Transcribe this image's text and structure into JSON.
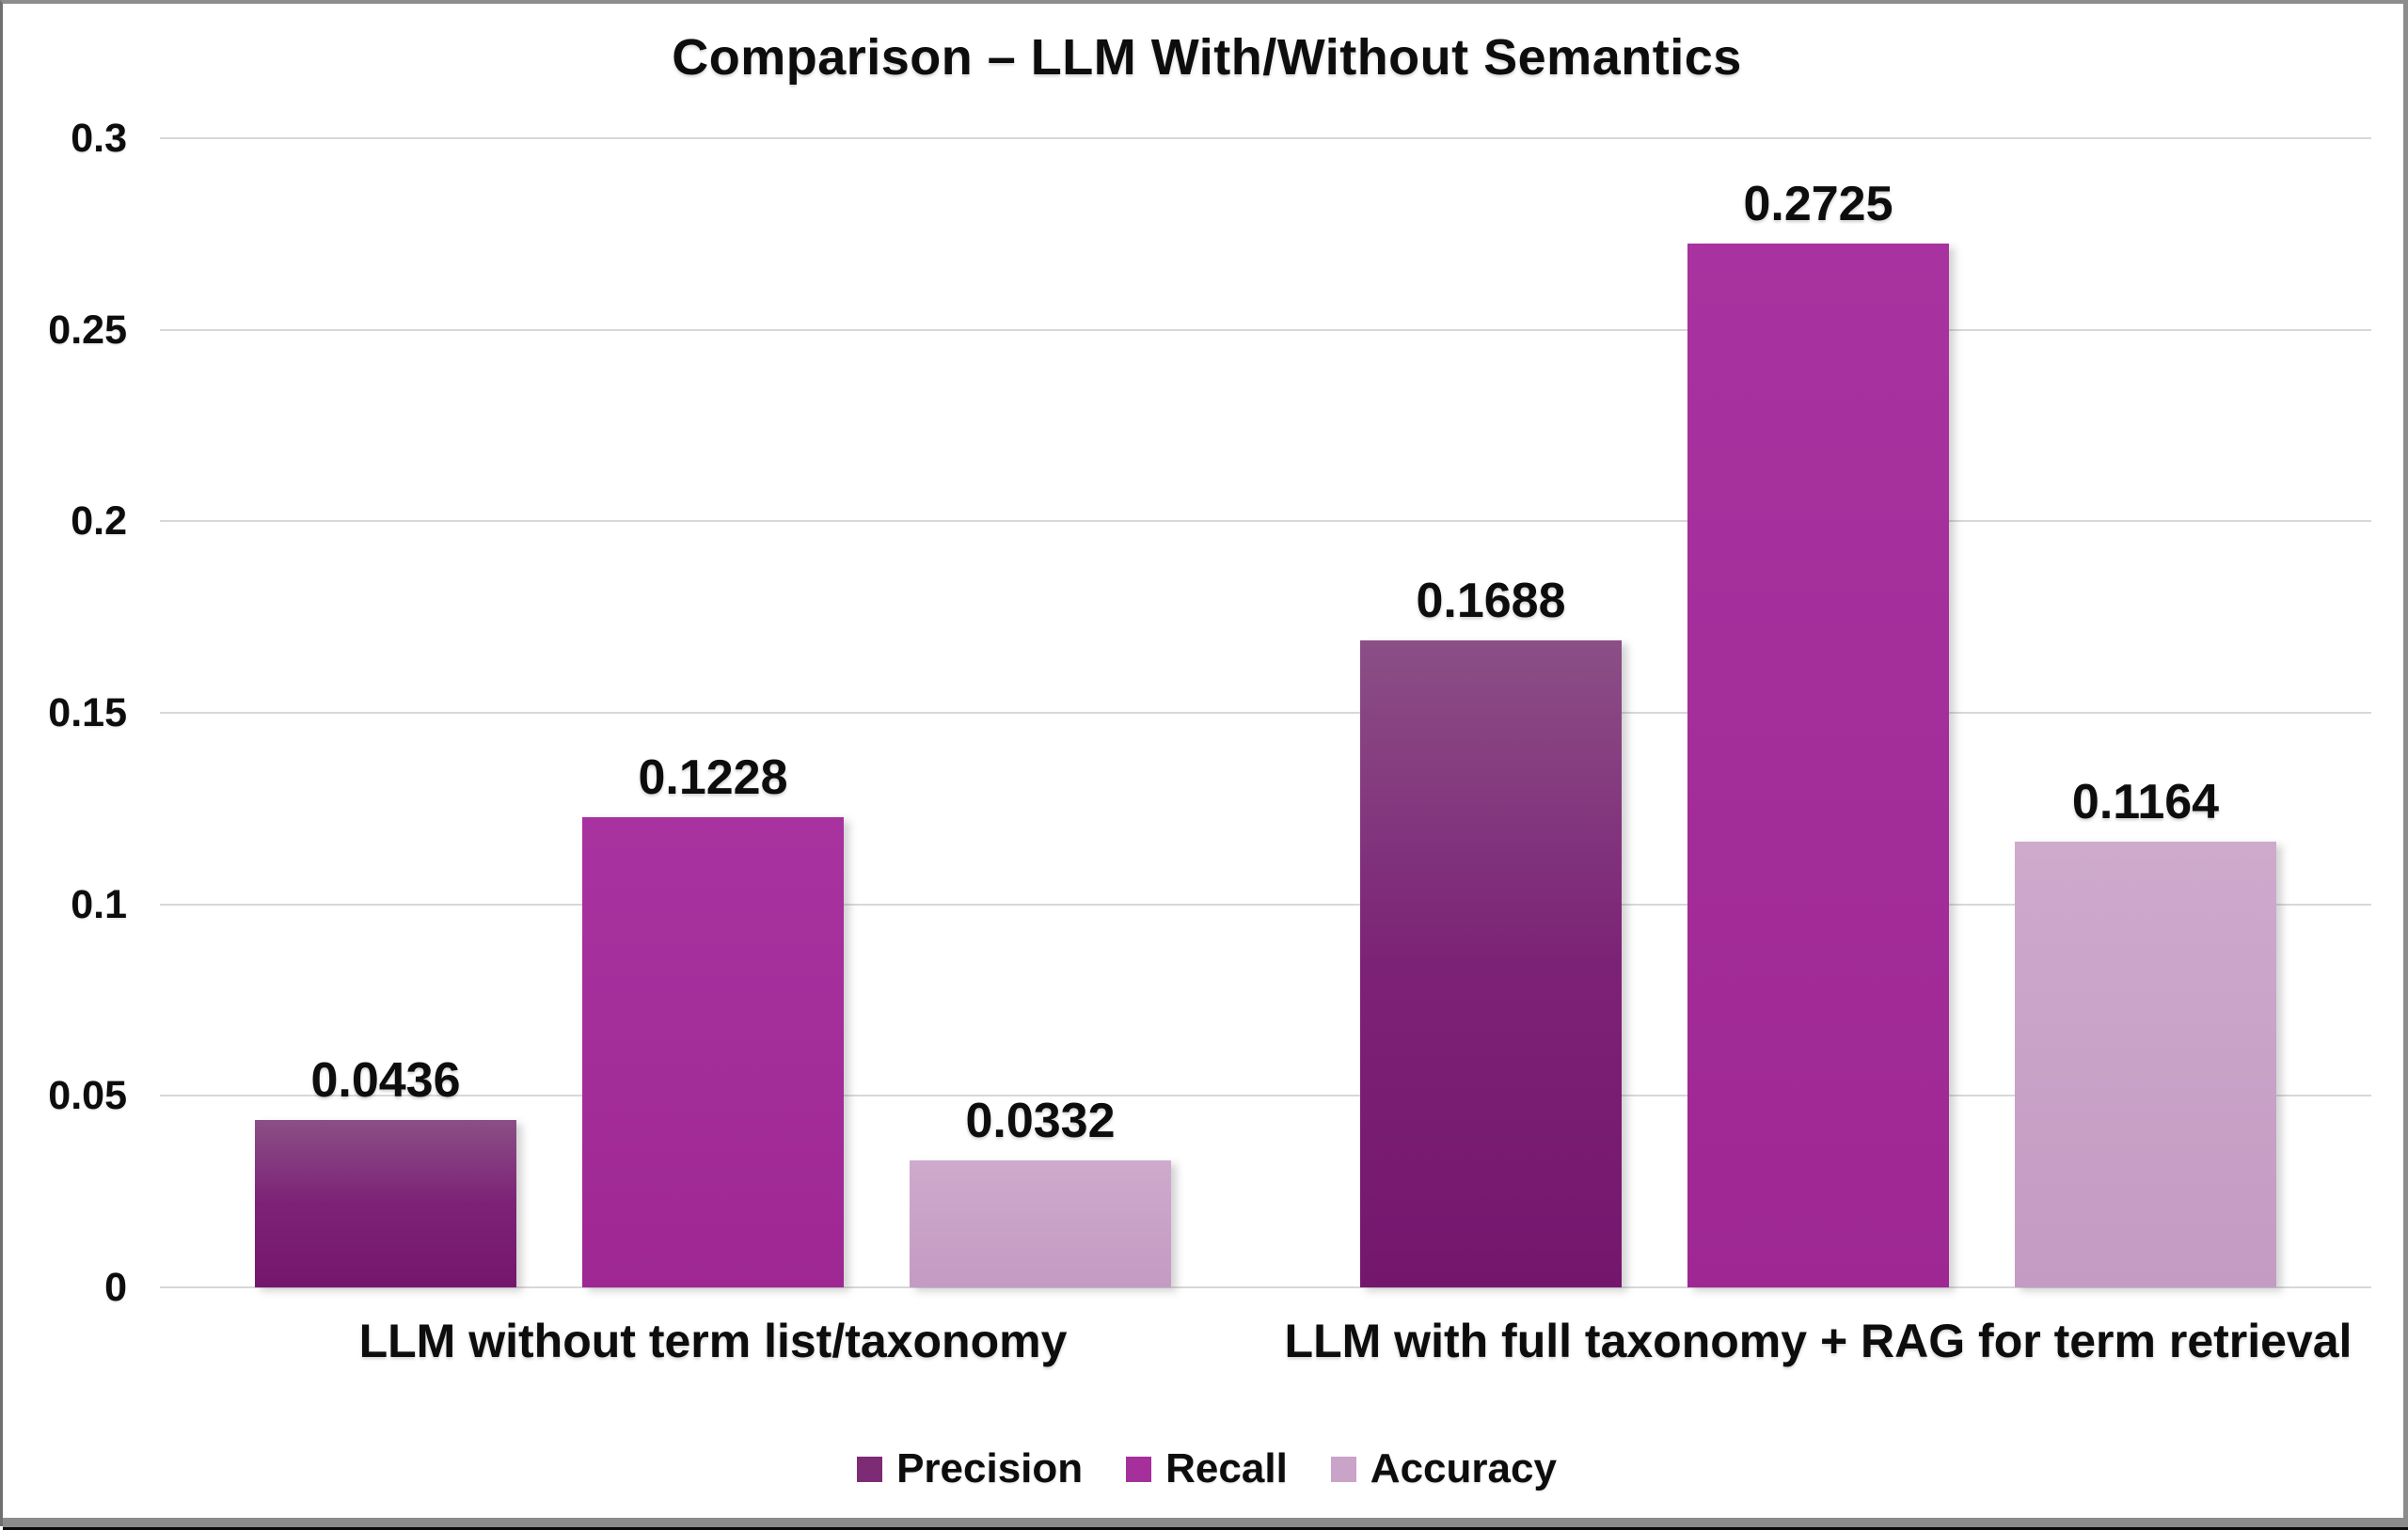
{
  "window": {
    "background": "#ffffff",
    "border_color": "#8c8c8c",
    "bottom_strip_gray": "#8c8c8c",
    "bottom_strip_black": "#0b0b0b"
  },
  "chart_data": {
    "type": "bar",
    "title": "Comparison – LLM With/Without Semantics",
    "categories": [
      "LLM without term list/taxonomy",
      "LLM with full taxonomy + RAG for term retrieval"
    ],
    "series": [
      {
        "name": "Precision",
        "values": [
          0.0436,
          0.1688
        ],
        "value_labels": [
          "0.0436",
          "0.1688"
        ],
        "bar_color_top": "#8B4F86",
        "bar_color_mid": "#7C2276",
        "bar_color_bottom": "#75166D",
        "legend_color": "#7C2B74"
      },
      {
        "name": "Recall",
        "values": [
          0.1228,
          0.2725
        ],
        "value_labels": [
          "0.1228",
          "0.2725"
        ],
        "bar_color_top": "#A8329F",
        "bar_color_mid": "#A32D99",
        "bar_color_bottom": "#9E2794",
        "legend_color": "#A5309B"
      },
      {
        "name": "Accuracy",
        "values": [
          0.0332,
          0.1164
        ],
        "value_labels": [
          "0.0332",
          "0.1164"
        ],
        "bar_color_top": "#CEAACD",
        "bar_color_mid": "#C9A2C8",
        "bar_color_bottom": "#C49BC3",
        "legend_color": "#C9A3C8"
      }
    ],
    "y_ticks": [
      "0.3",
      "0.25",
      "0.2",
      "0.15",
      "0.1",
      "0.05",
      "0"
    ],
    "ylim": [
      0,
      0.3
    ],
    "grid": true,
    "gridline_color": "#d8d8d8",
    "legend_position": "bottom",
    "text_color": "#0d0d0d"
  }
}
